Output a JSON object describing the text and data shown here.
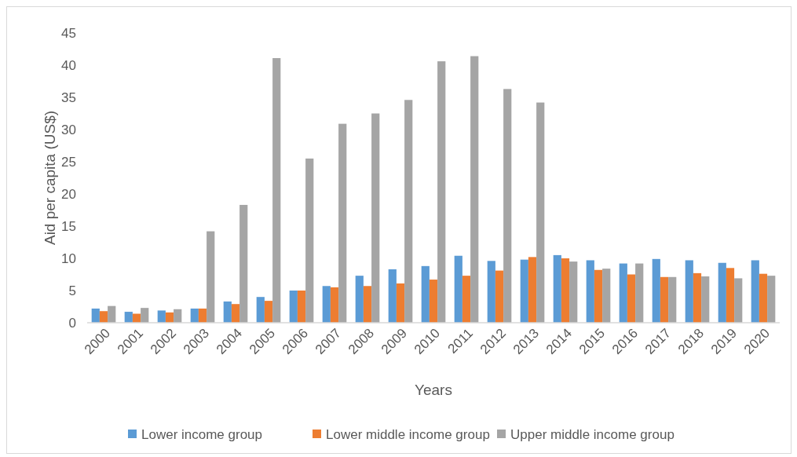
{
  "chart_data": {
    "type": "bar",
    "xlabel": "Years",
    "ylabel": "Aid per capita (US$)",
    "categories": [
      "2000",
      "2001",
      "2002",
      "2003",
      "2004",
      "2005",
      "2006",
      "2007",
      "2008",
      "2009",
      "2010",
      "2011",
      "2012",
      "2013",
      "2014",
      "2015",
      "2016",
      "2017",
      "2018",
      "2019",
      "2020"
    ],
    "series": [
      {
        "name": "Lower income group",
        "color": "#5b9bd5",
        "values": [
          2.2,
          1.7,
          1.9,
          2.2,
          3.3,
          4.0,
          5.0,
          5.7,
          7.3,
          8.3,
          8.8,
          10.4,
          9.6,
          9.8,
          10.5,
          9.7,
          9.2,
          9.9,
          9.7,
          9.3,
          9.7
        ]
      },
      {
        "name": "Lower middle income group",
        "color": "#ed7d31",
        "values": [
          1.8,
          1.4,
          1.6,
          2.2,
          2.9,
          3.4,
          5.0,
          5.5,
          5.7,
          6.1,
          6.7,
          7.3,
          8.1,
          10.2,
          10.0,
          8.2,
          7.5,
          7.1,
          7.7,
          8.5,
          7.6
        ]
      },
      {
        "name": "Upper middle income group",
        "color": "#a5a5a5",
        "values": [
          2.6,
          2.3,
          2.1,
          14.2,
          18.3,
          41.1,
          25.5,
          30.9,
          32.5,
          34.6,
          40.6,
          41.4,
          36.3,
          34.2,
          9.5,
          8.4,
          9.2,
          7.1,
          7.2,
          6.9,
          7.3
        ]
      }
    ],
    "ylim": [
      0,
      45
    ],
    "yticks": [
      0,
      5,
      10,
      15,
      20,
      25,
      30,
      35,
      40,
      45
    ],
    "grid": false,
    "legend": "bottom"
  }
}
